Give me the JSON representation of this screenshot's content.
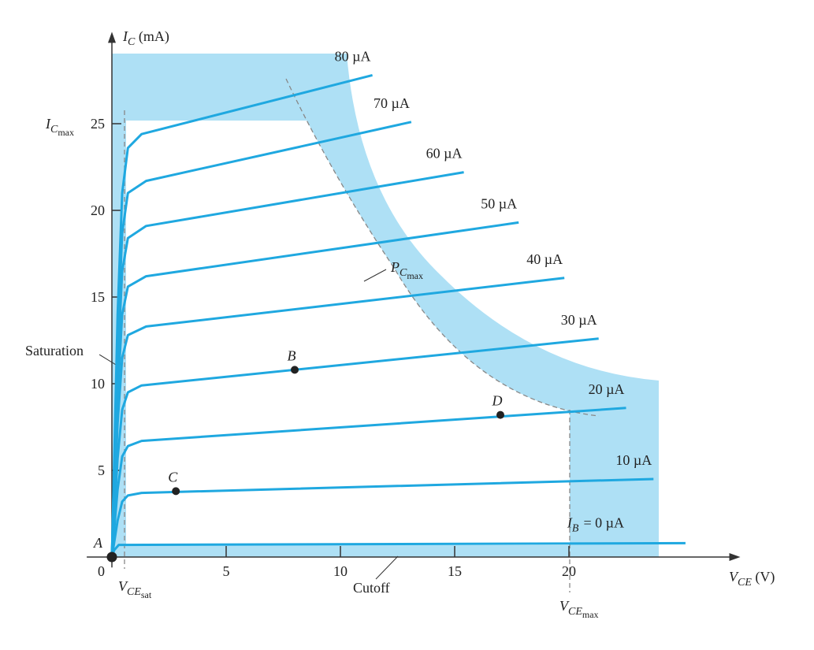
{
  "chart_data": {
    "type": "line",
    "y_label": [
      {
        "text": "I",
        "level": 0,
        "italic": true
      },
      {
        "text": "C",
        "level": 1,
        "italic": true
      },
      {
        "text": " (mA)",
        "level": 0,
        "italic": false
      }
    ],
    "x_label": [
      {
        "text": "V",
        "level": 0,
        "italic": true
      },
      {
        "text": "CE",
        "level": 1,
        "italic": true
      },
      {
        "text": " (V)",
        "level": 0,
        "italic": false
      }
    ],
    "ic_max_label": [
      {
        "text": "I",
        "level": 0,
        "italic": true
      },
      {
        "text": "C",
        "level": 1,
        "italic": true
      },
      {
        "text": "max",
        "level": 2,
        "italic": false
      }
    ],
    "vce_sat_label": [
      {
        "text": "V",
        "level": 0,
        "italic": true
      },
      {
        "text": "CE",
        "level": 1,
        "italic": true
      },
      {
        "text": "sat",
        "level": 2,
        "italic": false
      }
    ],
    "vce_max_label": [
      {
        "text": "V",
        "level": 0,
        "italic": true
      },
      {
        "text": "CE",
        "level": 1,
        "italic": true
      },
      {
        "text": "max",
        "level": 2,
        "italic": false
      }
    ],
    "pc_max_label": [
      {
        "text": "P",
        "level": 0,
        "italic": true
      },
      {
        "text": "C",
        "level": 1,
        "italic": true
      },
      {
        "text": "max",
        "level": 2,
        "italic": false
      }
    ],
    "ib_label": [
      {
        "text": "I",
        "level": 0,
        "italic": true
      },
      {
        "text": "B",
        "level": 1,
        "italic": true
      }
    ],
    "saturation_label": "Saturation",
    "cutoff_label": "Cutoff",
    "origin_label": "0",
    "xlim": [
      -1.1,
      27.5
    ],
    "ylim": [
      -0.6,
      30.3
    ],
    "xticks": [
      5,
      10,
      15,
      20
    ],
    "yticks": [
      5,
      10,
      15,
      20,
      25
    ],
    "series": [
      {
        "name": "80 µA",
        "color": "#1fa8e0",
        "x": [
          0,
          0.25,
          0.45,
          0.7,
          1.3,
          11.4
        ],
        "values": [
          0,
          14,
          21,
          23.6,
          24.4,
          27.8
        ]
      },
      {
        "name": "70 µA",
        "color": "#1fa8e0",
        "x": [
          0,
          0.25,
          0.45,
          0.7,
          1.5,
          13.1
        ],
        "values": [
          0,
          12.5,
          18.7,
          21,
          21.7,
          25.1
        ]
      },
      {
        "name": "60 µA",
        "color": "#1fa8e0",
        "x": [
          0,
          0.25,
          0.45,
          0.7,
          1.5,
          15.4
        ],
        "values": [
          0,
          11,
          16.5,
          18.4,
          19.1,
          22.2
        ]
      },
      {
        "name": "50 µA",
        "color": "#1fa8e0",
        "x": [
          0,
          0.25,
          0.45,
          0.7,
          1.5,
          17.8
        ],
        "values": [
          0,
          9.3,
          14,
          15.6,
          16.2,
          19.3
        ]
      },
      {
        "name": "40 µA",
        "color": "#1fa8e0",
        "x": [
          0,
          0.25,
          0.45,
          0.7,
          1.5,
          19.8
        ],
        "values": [
          0,
          7.7,
          11.5,
          12.8,
          13.3,
          16.1
        ]
      },
      {
        "name": "30 µA",
        "color": "#1fa8e0",
        "x": [
          0,
          0.25,
          0.45,
          0.7,
          1.3,
          21.3
        ],
        "values": [
          0,
          5.7,
          8.5,
          9.5,
          9.9,
          12.6
        ]
      },
      {
        "name": "20 µA",
        "color": "#1fa8e0",
        "x": [
          0,
          0.25,
          0.45,
          0.7,
          1.3,
          22.5
        ],
        "values": [
          0,
          3.9,
          5.8,
          6.4,
          6.7,
          8.6
        ]
      },
      {
        "name": "10 µA",
        "color": "#1fa8e0",
        "x": [
          0,
          0.25,
          0.45,
          0.7,
          1.3,
          23.7
        ],
        "values": [
          0,
          2.1,
          3.2,
          3.55,
          3.7,
          4.5
        ]
      },
      {
        "name": "= 0 µA",
        "color": "#1fa8e0",
        "x": [
          0,
          0.1,
          0.3,
          25.1
        ],
        "values": [
          0,
          0.4,
          0.7,
          0.8
        ]
      }
    ],
    "points": [
      {
        "label": "A",
        "x": 0,
        "y": 0
      },
      {
        "label": "B",
        "x": 8,
        "y": 10.8
      },
      {
        "label": "C",
        "x": 2.8,
        "y": 3.8
      },
      {
        "label": "D",
        "x": 17,
        "y": 8.2
      }
    ]
  }
}
